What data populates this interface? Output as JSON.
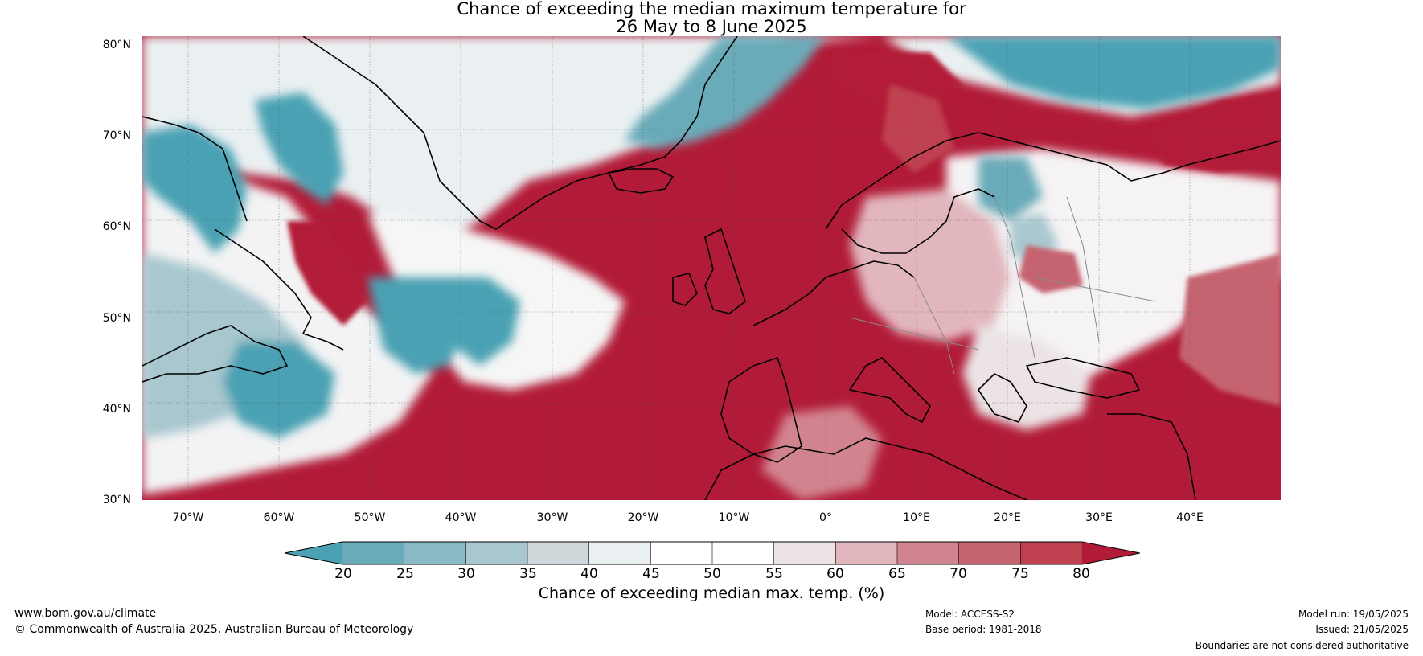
{
  "title_line1": "Chance of exceeding the median maximum temperature for",
  "title_line2": "26 May to 8 June 2025",
  "map": {
    "lat_labels": [
      "80°N",
      "70°N",
      "60°N",
      "50°N",
      "40°N",
      "30°N"
    ],
    "lon_labels": [
      "70°W",
      "60°W",
      "50°W",
      "40°W",
      "30°W",
      "20°W",
      "10°W",
      "0°",
      "10°E",
      "20°E",
      "30°E",
      "40°E"
    ],
    "extent": {
      "lon_min": -75,
      "lon_max": 50,
      "lat_min": 30,
      "lat_max": 81
    }
  },
  "colorbar": {
    "ticks": [
      "20",
      "25",
      "30",
      "35",
      "40",
      "45",
      "50",
      "55",
      "60",
      "65",
      "70",
      "75",
      "80"
    ],
    "colors": [
      "#4aa1b3",
      "#6aabb9",
      "#88b9c5",
      "#a8c7cf",
      "#cfd9dc",
      "#eaf0f2",
      "#ffffff",
      "#ffffff",
      "#ebe3e5",
      "#e2b6bd",
      "#d1848f",
      "#c6646f",
      "#bf4150",
      "#b21b38"
    ],
    "label": "Chance of exceeding median max. temp. (%)"
  },
  "footer": {
    "website": "www.bom.gov.au/climate",
    "copyright": "© Commonwealth of Australia 2025, Australian Bureau of Meteorology",
    "model": "Model: ACCESS-S2",
    "base_period": "Base period: 1981-2018",
    "model_run": "Model run: 19/05/2025",
    "issued": "Issued: 21/05/2025",
    "disclaimer": "Boundaries are not considered authoritative"
  }
}
